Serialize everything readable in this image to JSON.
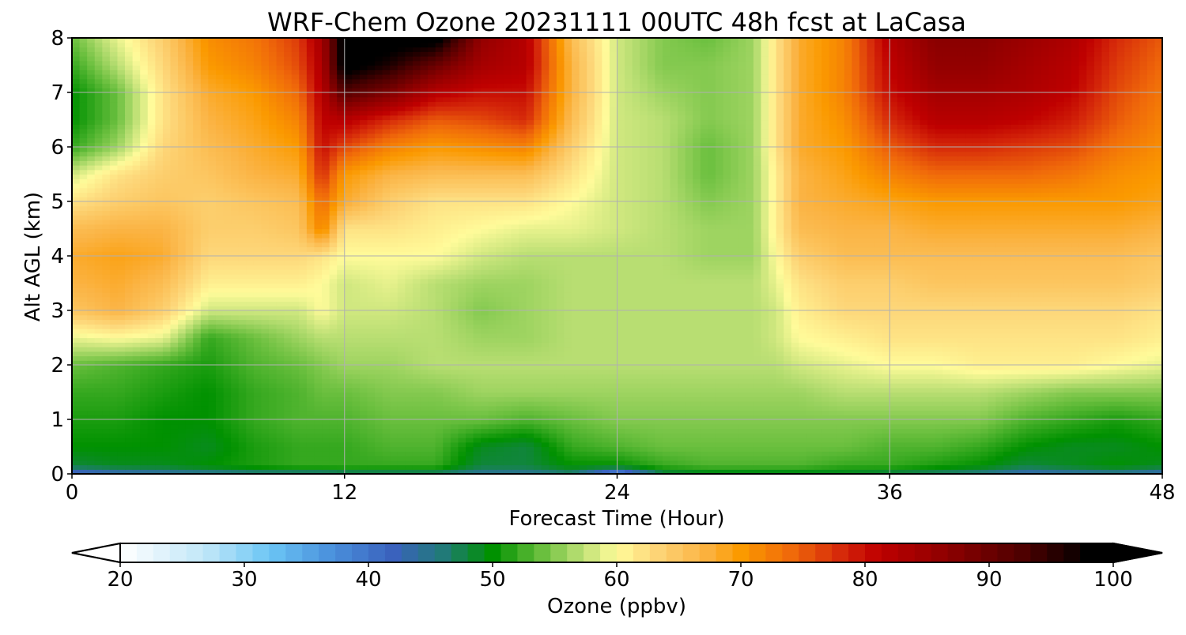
{
  "chart_data": {
    "type": "heatmap",
    "title": "WRF-Chem Ozone  20231111 00UTC 48h fcst at LaCasa",
    "xlabel": "Forecast Time (Hour)",
    "ylabel": "Alt AGL (km)",
    "xlim": [
      0,
      48
    ],
    "ylim": [
      0,
      8
    ],
    "x_ticks": [
      0,
      12,
      24,
      36,
      48
    ],
    "y_ticks": [
      0,
      1,
      2,
      3,
      4,
      5,
      6,
      7,
      8
    ],
    "grid": true,
    "colorbar": {
      "label": "Ozone  (ppbv)",
      "min": 20,
      "max": 100,
      "ticks": [
        20,
        30,
        40,
        50,
        60,
        70,
        80,
        90,
        100
      ],
      "extend": "both",
      "orientation": "horizontal",
      "placement": "bottom",
      "colors": {
        "20": "#ffffff",
        "27": "#bfe6f8",
        "32": "#6cc6f5",
        "37": "#4a90dc",
        "42": "#3a62bd",
        "46": "#217a78",
        "50": "#009100",
        "54": "#6abf3e",
        "57": "#b8de72",
        "60": "#fffb9a",
        "63": "#fdd77a",
        "67": "#fbb445",
        "70": "#fb9a00",
        "74": "#f06a0a",
        "78": "#d62a0a",
        "81": "#bf0000",
        "87": "#8a0000",
        "93": "#4a0000",
        "98": "#000000"
      }
    },
    "x_hours": [
      0,
      2,
      4,
      6,
      8,
      10,
      11,
      12,
      14,
      16,
      18,
      20,
      22,
      24,
      26,
      28,
      30,
      31,
      32,
      34,
      36,
      38,
      40,
      42,
      44,
      46,
      48
    ],
    "y_km": [
      0,
      0.15,
      0.5,
      1,
      1.5,
      2,
      2.5,
      3,
      3.5,
      4,
      4.5,
      5,
      5.5,
      6,
      6.5,
      7,
      7.5,
      8
    ],
    "ozone_ppbv": [
      [
        40,
        42,
        43,
        44,
        45,
        45,
        45,
        46,
        46,
        46,
        44,
        44,
        46,
        36,
        47,
        48,
        48,
        48,
        48,
        48,
        47,
        46,
        45,
        42,
        43,
        44,
        42
      ],
      [
        48,
        49,
        49,
        50,
        51,
        52,
        52,
        52,
        52,
        52,
        48,
        48,
        50,
        50,
        52,
        53,
        53,
        53,
        53,
        52,
        52,
        51,
        50,
        48,
        49,
        50,
        49
      ],
      [
        50,
        50,
        50,
        49,
        51,
        52,
        52,
        52,
        53,
        53,
        49,
        48,
        52,
        53,
        54,
        54,
        54,
        54,
        54,
        54,
        53,
        53,
        52,
        50,
        49,
        49,
        50
      ],
      [
        51,
        51,
        50,
        50,
        52,
        53,
        53,
        53,
        54,
        54,
        54,
        53,
        54,
        55,
        55,
        55,
        55,
        55,
        55,
        55,
        55,
        55,
        55,
        53,
        52,
        51,
        52
      ],
      [
        52,
        52,
        51,
        50,
        52,
        53,
        54,
        54,
        55,
        55,
        56,
        56,
        56,
        56,
        56,
        56,
        56,
        56,
        56,
        57,
        57,
        57,
        57,
        56,
        55,
        55,
        55
      ],
      [
        54,
        53,
        52,
        51,
        53,
        54,
        55,
        56,
        56,
        57,
        57,
        57,
        57,
        57,
        57,
        57,
        57,
        57,
        58,
        59,
        60,
        60,
        61,
        61,
        61,
        60,
        59
      ],
      [
        59,
        60,
        59,
        52,
        54,
        56,
        57,
        57,
        57,
        57,
        56,
        56,
        57,
        57,
        57,
        57,
        57,
        58,
        60,
        61,
        62,
        62,
        62,
        62,
        62,
        62,
        61
      ],
      [
        65,
        67,
        64,
        58,
        58,
        58,
        60,
        58,
        58,
        57,
        55,
        56,
        57,
        57,
        57,
        57,
        57,
        58,
        61,
        63,
        63,
        63,
        63,
        63,
        63,
        63,
        62
      ],
      [
        67,
        68,
        66,
        61,
        61,
        61,
        60,
        58,
        59,
        57,
        56,
        56,
        57,
        57,
        57,
        57,
        57,
        59,
        62,
        64,
        64,
        65,
        65,
        65,
        65,
        65,
        64
      ],
      [
        68,
        69,
        68,
        63,
        63,
        63,
        62,
        60,
        60,
        60,
        58,
        57,
        57,
        57,
        57,
        56,
        56,
        60,
        64,
        66,
        66,
        66,
        66,
        66,
        66,
        66,
        65
      ],
      [
        66,
        67,
        67,
        64,
        64,
        65,
        72,
        62,
        62,
        61,
        60,
        59,
        59,
        58,
        57,
        56,
        56,
        61,
        66,
        67,
        67,
        68,
        68,
        68,
        68,
        68,
        67
      ],
      [
        62,
        64,
        65,
        64,
        65,
        66,
        74,
        68,
        64,
        62,
        62,
        62,
        60,
        58,
        57,
        55,
        56,
        61,
        67,
        68,
        69,
        70,
        70,
        70,
        70,
        70,
        69
      ],
      [
        58,
        62,
        64,
        65,
        67,
        68,
        78,
        70,
        67,
        66,
        66,
        66,
        62,
        58,
        57,
        54,
        56,
        61,
        67,
        69,
        72,
        74,
        74,
        74,
        73,
        71,
        70
      ],
      [
        52,
        56,
        63,
        66,
        68,
        70,
        80,
        76,
        72,
        70,
        71,
        72,
        64,
        58,
        57,
        54,
        56,
        62,
        68,
        70,
        75,
        78,
        78,
        77,
        76,
        73,
        71
      ],
      [
        50,
        54,
        62,
        67,
        69,
        72,
        81,
        82,
        78,
        75,
        76,
        78,
        66,
        58,
        57,
        55,
        56,
        62,
        68,
        71,
        78,
        82,
        82,
        81,
        79,
        75,
        72
      ],
      [
        50,
        54,
        62,
        68,
        70,
        74,
        82,
        92,
        88,
        82,
        80,
        80,
        67,
        58,
        56,
        55,
        56,
        62,
        68,
        72,
        80,
        84,
        84,
        83,
        81,
        76,
        73
      ],
      [
        52,
        57,
        63,
        70,
        72,
        76,
        83,
        100,
        96,
        90,
        84,
        82,
        67,
        58,
        55,
        55,
        56,
        62,
        68,
        72,
        81,
        86,
        86,
        84,
        82,
        77,
        74
      ],
      [
        54,
        59,
        64,
        71,
        73,
        77,
        84,
        100,
        100,
        100,
        86,
        82,
        66,
        58,
        55,
        54,
        56,
        62,
        68,
        72,
        82,
        87,
        87,
        85,
        83,
        78,
        75
      ]
    ]
  }
}
